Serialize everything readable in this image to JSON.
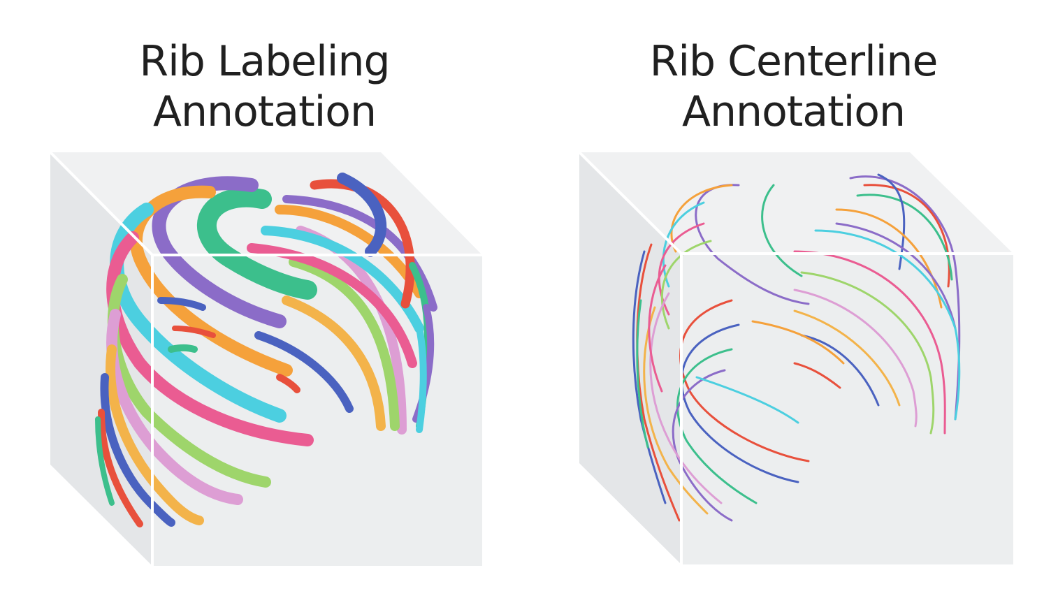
{
  "panels": [
    {
      "title_line1": "Rib Labeling",
      "title_line2": "Annotation",
      "style": "segmentation-masks"
    },
    {
      "title_line1": "Rib Centerline",
      "title_line2": "Annotation",
      "style": "centerlines"
    }
  ],
  "palette": {
    "red": "#e8503c",
    "blue": "#4a62c0",
    "orange": "#f5a13b",
    "purple": "#8b6cc8",
    "green": "#3cbf8c",
    "pink": "#ea5c92",
    "cyan": "#4ccfe0",
    "lightgreen": "#9ed56b",
    "lightpink": "#dd9ed4",
    "yellow": "#f3b34a",
    "peach": "#f6a066"
  },
  "box_colors": {
    "face": "#eceeef",
    "side": "#e3e5e7",
    "edge": "#ffffff"
  }
}
